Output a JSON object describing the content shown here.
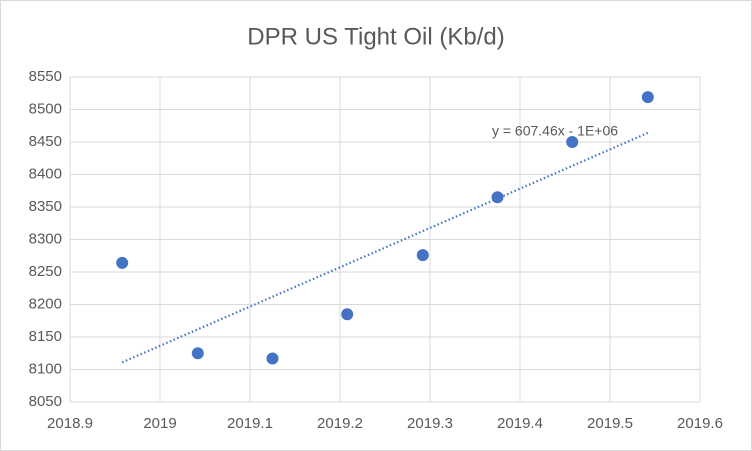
{
  "chart_data": {
    "type": "scatter",
    "title": "DPR US Tight Oil (Kb/d)",
    "series": [
      {
        "name": "DPR US Tight Oil",
        "color": "#4472c4",
        "x": [
          2018.958,
          2019.042,
          2019.125,
          2019.208,
          2019.292,
          2019.375,
          2019.458,
          2019.542
        ],
        "values": [
          8264,
          8125,
          8117,
          8185,
          8276,
          8365,
          8450,
          8519
        ]
      }
    ],
    "trendline": {
      "label": "y = 607.46x - 1E+06",
      "color": "#4472c4",
      "x": [
        2018.958,
        2019.542
      ],
      "values": [
        8111,
        8464
      ]
    },
    "xlim": [
      2018.9,
      2019.6
    ],
    "xticks": [
      2018.9,
      2019,
      2019.1,
      2019.2,
      2019.3,
      2019.4,
      2019.5,
      2019.6
    ],
    "ylim": [
      8050,
      8550
    ],
    "yticks": [
      8050,
      8100,
      8150,
      8200,
      8250,
      8300,
      8350,
      8400,
      8450,
      8500,
      8550
    ],
    "grid": true
  }
}
